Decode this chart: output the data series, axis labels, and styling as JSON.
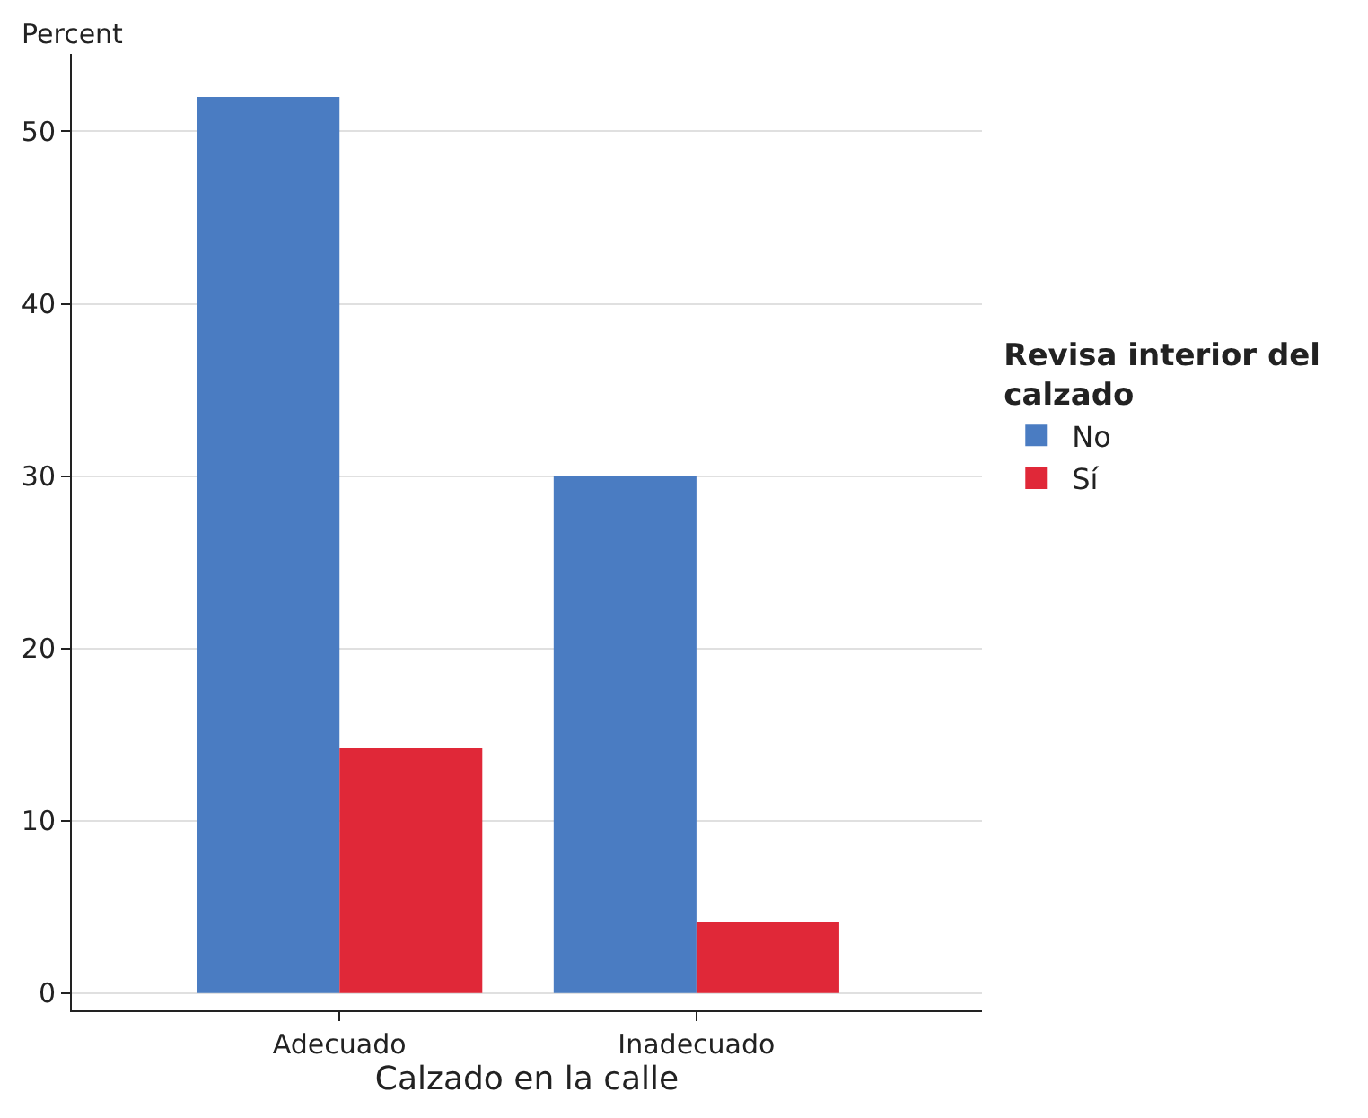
{
  "chart_data": {
    "type": "bar",
    "xlabel": "Calzado en la calle",
    "ylabel": "Percent",
    "legend_title": "Revisa interior del calzado",
    "categories": [
      "Adecuado",
      "Inadecuado"
    ],
    "series": [
      {
        "name": "No",
        "color": "#4a7cc2",
        "values": [
          52.0,
          30.0
        ]
      },
      {
        "name": "Sí",
        "color": "#e02838",
        "values": [
          14.2,
          4.1
        ]
      }
    ],
    "ylim": [
      -1,
      54.5
    ],
    "yticks": [
      0,
      10,
      20,
      30,
      40,
      50
    ],
    "grid": "y",
    "legend": "right"
  }
}
